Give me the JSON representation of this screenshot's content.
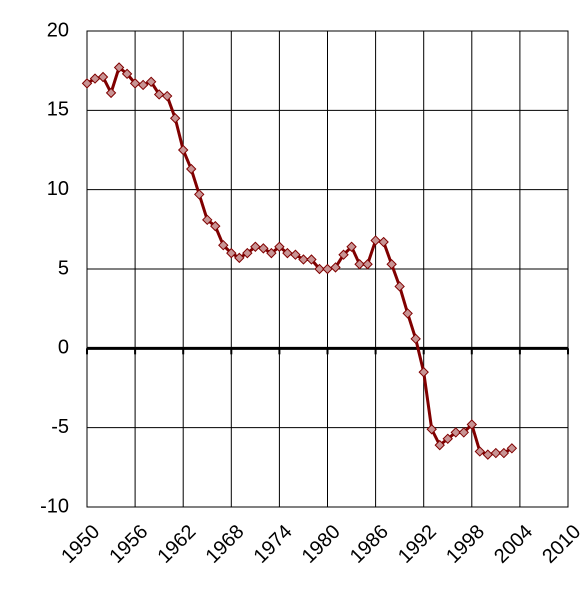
{
  "chart_data": {
    "type": "line",
    "x": [
      1950,
      1951,
      1952,
      1953,
      1954,
      1955,
      1956,
      1957,
      1958,
      1959,
      1960,
      1961,
      1962,
      1963,
      1964,
      1965,
      1966,
      1967,
      1968,
      1969,
      1970,
      1971,
      1972,
      1973,
      1974,
      1975,
      1976,
      1977,
      1978,
      1979,
      1980,
      1981,
      1982,
      1983,
      1984,
      1985,
      1986,
      1987,
      1988,
      1989,
      1990,
      1991,
      1992,
      1993,
      1994,
      1995,
      1996,
      1997,
      1998,
      1999,
      2000,
      2001,
      2002,
      2003
    ],
    "values": [
      16.7,
      17.0,
      17.1,
      16.1,
      17.7,
      17.3,
      16.7,
      16.6,
      16.8,
      16.0,
      15.9,
      14.5,
      12.5,
      11.3,
      9.7,
      8.1,
      7.7,
      6.5,
      6.0,
      5.7,
      6.0,
      6.4,
      6.3,
      6.0,
      6.4,
      6.0,
      5.9,
      5.6,
      5.6,
      5.0,
      5.0,
      5.1,
      5.9,
      6.4,
      5.3,
      5.3,
      6.8,
      6.7,
      5.3,
      3.9,
      2.2,
      0.6,
      -1.5,
      -5.1,
      -6.1,
      -5.7,
      -5.3,
      -5.3,
      -4.8,
      -6.5,
      -6.7,
      -6.6,
      -6.6,
      -6.3
    ],
    "color": "#800000",
    "marker_color": "#c89494",
    "xlim": [
      1950,
      2010
    ],
    "xticks": [
      1950,
      1956,
      1962,
      1968,
      1974,
      1980,
      1986,
      1992,
      1998,
      2004,
      2010
    ],
    "ylim": [
      -10,
      20
    ],
    "yticks": [
      -10,
      -5,
      0,
      5,
      10,
      15,
      20
    ],
    "grid": true
  }
}
